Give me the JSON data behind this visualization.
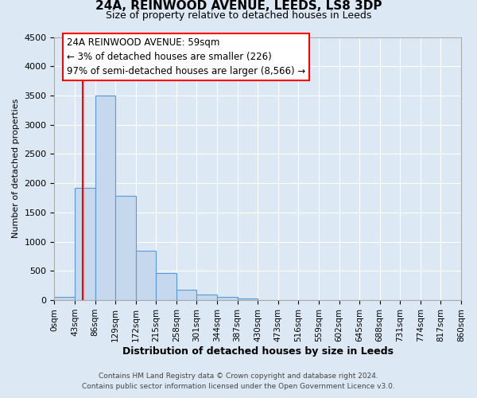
{
  "title": "24A, REINWOOD AVENUE, LEEDS, LS8 3DP",
  "subtitle": "Size of property relative to detached houses in Leeds",
  "xlabel": "Distribution of detached houses by size in Leeds",
  "ylabel": "Number of detached properties",
  "bar_values": [
    50,
    1920,
    3500,
    1780,
    850,
    460,
    175,
    95,
    50,
    30,
    0,
    0,
    0,
    0,
    0,
    0,
    0,
    0,
    0,
    0
  ],
  "bin_edges": [
    0,
    43,
    86,
    129,
    172,
    215,
    258,
    301,
    344,
    387,
    430,
    473,
    516,
    559,
    602,
    645,
    688,
    731,
    774,
    817,
    860
  ],
  "tick_labels": [
    "0sqm",
    "43sqm",
    "86sqm",
    "129sqm",
    "172sqm",
    "215sqm",
    "258sqm",
    "301sqm",
    "344sqm",
    "387sqm",
    "430sqm",
    "473sqm",
    "516sqm",
    "559sqm",
    "602sqm",
    "645sqm",
    "688sqm",
    "731sqm",
    "774sqm",
    "817sqm",
    "860sqm"
  ],
  "bar_color": "#c5d8ed",
  "bar_edge_color": "#5b9bd5",
  "bar_edge_width": 0.8,
  "red_line_x": 59,
  "annotation_line1": "24A REINWOOD AVENUE: 59sqm",
  "annotation_line2": "← 3% of detached houses are smaller (226)",
  "annotation_line3": "97% of semi-detached houses are larger (8,566) →",
  "ylim": [
    0,
    4500
  ],
  "yticks": [
    0,
    500,
    1000,
    1500,
    2000,
    2500,
    3000,
    3500,
    4000,
    4500
  ],
  "background_color": "#dce9f5",
  "grid_color": "#ffffff",
  "footer_line1": "Contains HM Land Registry data © Crown copyright and database right 2024.",
  "footer_line2": "Contains public sector information licensed under the Open Government Licence v3.0."
}
